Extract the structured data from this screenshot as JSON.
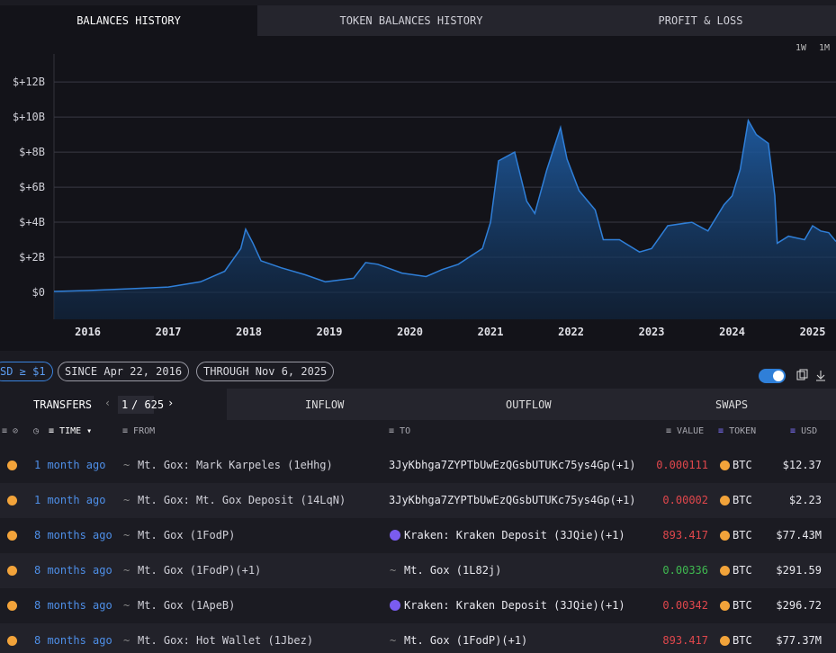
{
  "tabs": [
    "BALANCES HISTORY",
    "TOKEN BALANCES HISTORY",
    "PROFIT & LOSS"
  ],
  "ranges": [
    "1W",
    "1M"
  ],
  "chart_data": {
    "type": "area",
    "color": "#2f7fd8",
    "grid": true,
    "x": [
      2015.58,
      2016.0,
      2016.5,
      2017.0,
      2017.4,
      2017.7,
      2017.9,
      2017.96,
      2018.05,
      2018.15,
      2018.4,
      2018.7,
      2018.95,
      2019.3,
      2019.45,
      2019.6,
      2019.9,
      2020.2,
      2020.4,
      2020.6,
      2020.9,
      2021.0,
      2021.1,
      2021.3,
      2021.45,
      2021.55,
      2021.7,
      2021.87,
      2021.95,
      2022.1,
      2022.3,
      2022.4,
      2022.6,
      2022.85,
      2023.0,
      2023.2,
      2023.5,
      2023.7,
      2023.9,
      2024.0,
      2024.1,
      2024.2,
      2024.3,
      2024.45,
      2024.53,
      2024.56,
      2024.7,
      2024.9,
      2025.0,
      2025.1,
      2025.2,
      2025.29
    ],
    "values": [
      0.05,
      0.1,
      0.2,
      0.3,
      0.6,
      1.2,
      2.5,
      3.6,
      2.8,
      1.8,
      1.4,
      1.0,
      0.6,
      0.8,
      1.7,
      1.6,
      1.1,
      0.9,
      1.3,
      1.6,
      2.5,
      4.0,
      7.5,
      8.0,
      5.2,
      4.5,
      7.0,
      9.4,
      7.6,
      5.8,
      4.7,
      3.0,
      3.0,
      2.3,
      2.5,
      3.8,
      4.0,
      3.5,
      5.0,
      5.5,
      7.0,
      9.8,
      9.0,
      8.5,
      5.5,
      2.8,
      3.2,
      3.0,
      3.8,
      3.5,
      3.4,
      2.9
    ],
    "xlim": [
      2015.58,
      2025.29
    ],
    "ylim": [
      -1.54,
      13.6
    ],
    "xticks": [
      2016,
      2017,
      2018,
      2019,
      2020,
      2021,
      2022,
      2023,
      2024,
      2025
    ],
    "yticks": [
      {
        "value": 0,
        "label": "$0"
      },
      {
        "value": 2,
        "label": "$+2B"
      },
      {
        "value": 4,
        "label": "$+4B"
      },
      {
        "value": 6,
        "label": "$+6B"
      },
      {
        "value": 8,
        "label": "$+8B"
      },
      {
        "value": 10,
        "label": "$+10B"
      },
      {
        "value": 12,
        "label": "$+12B"
      }
    ]
  },
  "filters": [
    "SD ≥ $1",
    "SINCE Apr 22, 2016",
    "THROUGH Nov 6, 2025"
  ],
  "table_tabs": {
    "transfers": "TRANSFERS",
    "page": "1",
    "pages": "/ 625",
    "inflow": "INFLOW",
    "outflow": "OUTFLOW",
    "swaps": "SWAPS"
  },
  "columns": {
    "time": "TIME",
    "from": "FROM",
    "to": "TO",
    "value": "VALUE",
    "token": "TOKEN",
    "usd": "USD"
  },
  "rows": [
    {
      "time": "1 month ago",
      "from": "Mt. Gox: Mark Karpeles (1eHhg)",
      "to": "3JyKbhga7ZYPTbUwEzQGsbUTUKc75ys4Gp(+1)",
      "value": "0.000111",
      "value_color": "#e0474c",
      "token": "BTC",
      "usd": "$12.37"
    },
    {
      "time": "1 month ago",
      "from": "Mt. Gox: Mt. Gox Deposit (14LqN)",
      "to": "3JyKbhga7ZYPTbUwEzQGsbUTUKc75ys4Gp(+1)",
      "value": "0.00002",
      "value_color": "#e0474c",
      "token": "BTC",
      "usd": "$2.23"
    },
    {
      "time": "8 months ago",
      "from": "Mt. Gox (1FodP)",
      "to": "Kraken: Kraken Deposit (3JQie)(+1)",
      "value": "893.417",
      "value_color": "#e0474c",
      "token": "BTC",
      "usd": "$77.43M"
    },
    {
      "time": "8 months ago",
      "from": "Mt. Gox (1FodP)(+1)",
      "to": "Mt. Gox (1L82j)",
      "value": "0.00336",
      "value_color": "#3fb950",
      "token": "BTC",
      "usd": "$291.59"
    },
    {
      "time": "8 months ago",
      "from": "Mt. Gox (1ApeB)",
      "to": "Kraken: Kraken Deposit (3JQie)(+1)",
      "value": "0.00342",
      "value_color": "#e0474c",
      "token": "BTC",
      "usd": "$296.72"
    },
    {
      "time": "8 months ago",
      "from": "Mt. Gox: Hot Wallet (1Jbez)",
      "to": "Mt. Gox (1FodP)(+1)",
      "value": "893.417",
      "value_color": "#e0474c",
      "token": "BTC",
      "usd": "$77.37M"
    }
  ]
}
